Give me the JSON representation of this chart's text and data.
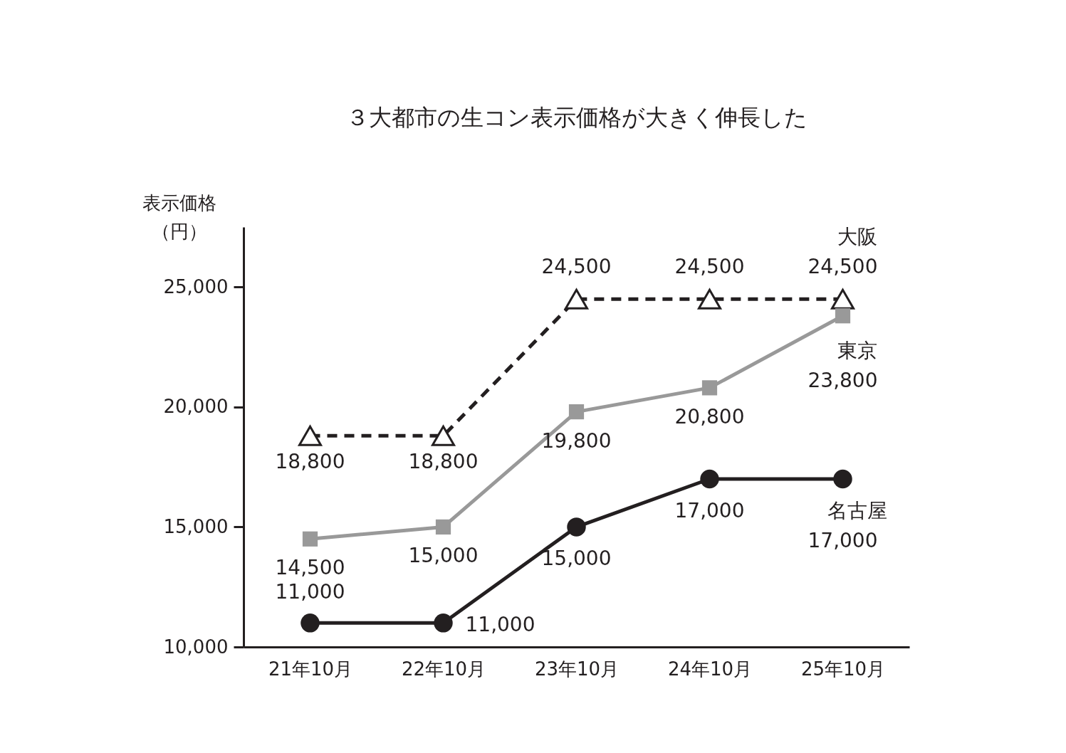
{
  "chart_data": {
    "type": "line",
    "title": "３大都市の生コン表示価格が大きく伸長した",
    "ylabel": "表示価格（円）",
    "categories": [
      "21年10月",
      "22年10月",
      "23年10月",
      "24年10月",
      "25年10月"
    ],
    "series": [
      {
        "name": "大阪",
        "color": "#231f20",
        "values": [
          18800,
          18800,
          24500,
          24500,
          24500
        ],
        "value_labels": [
          "18,800",
          "18,800",
          "24,500",
          "24,500",
          "24,500"
        ],
        "marker": "triangle",
        "line_style": "dashed"
      },
      {
        "name": "東京",
        "color": "#999999",
        "values": [
          14500,
          15000,
          19800,
          20800,
          23800
        ],
        "value_labels": [
          "14,500",
          "15,000",
          "19,800",
          "20,800",
          "23,800"
        ],
        "marker": "square",
        "line_style": "solid"
      },
      {
        "name": "名古屋",
        "color": "#231f20",
        "values": [
          11000,
          11000,
          15000,
          17000,
          17000
        ],
        "value_labels": [
          "11,000",
          "11,000",
          "15,000",
          "17,000",
          "17,000"
        ],
        "marker": "circle",
        "line_style": "solid"
      }
    ],
    "ylim": [
      10000,
      27500
    ],
    "yticks": [
      {
        "value": 10000,
        "label": "10,000"
      },
      {
        "value": 15000,
        "label": "15,000"
      },
      {
        "value": 20000,
        "label": "20,000"
      },
      {
        "value": 25000,
        "label": "25,000"
      }
    ],
    "legend": false,
    "grid": false
  }
}
